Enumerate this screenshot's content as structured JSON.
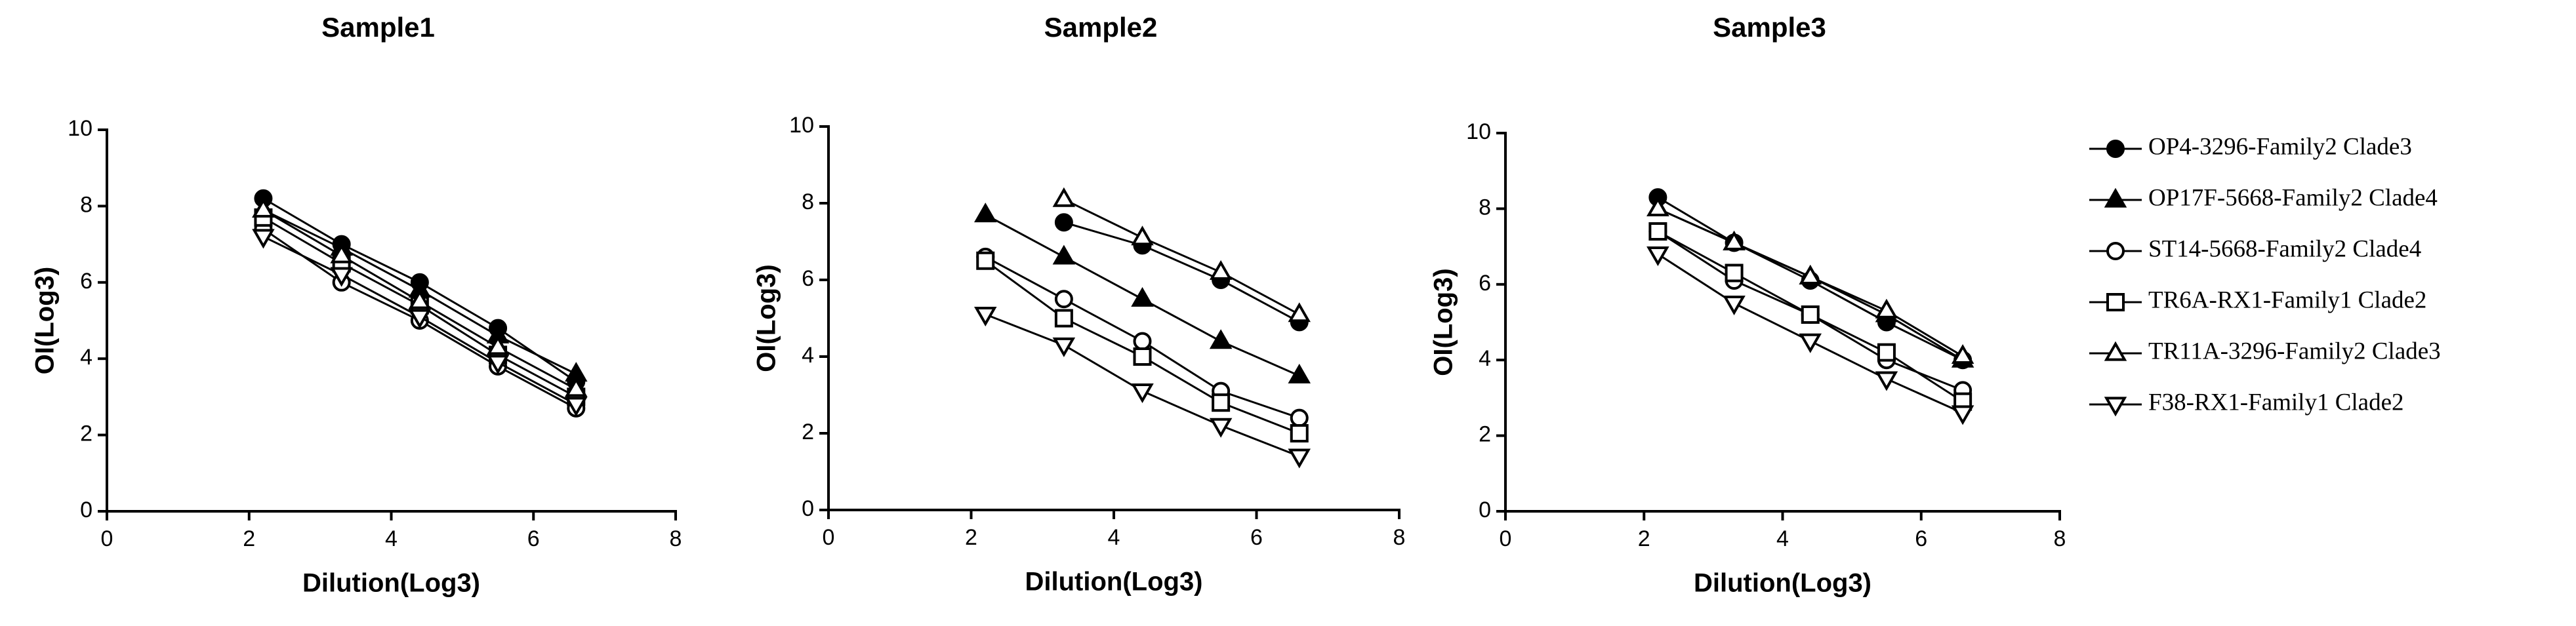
{
  "chart_data": [
    {
      "type": "line",
      "title": "Sample1",
      "x_label": "Dilution(Log3)",
      "y_label": "OI(Log3)",
      "x": [
        2.2,
        3.3,
        4.4,
        5.5,
        6.6
      ],
      "xlim": [
        0,
        8
      ],
      "xticks": [
        0,
        2,
        4,
        6,
        8
      ],
      "ylim": [
        0,
        10
      ],
      "yticks": [
        0,
        2,
        4,
        6,
        8,
        10
      ],
      "series": [
        {
          "name": "OP4-3296-Family2 Clade3",
          "color": "#000000",
          "marker": "circle-filled",
          "values": [
            8.2,
            7.0,
            6.0,
            4.8,
            3.4
          ]
        },
        {
          "name": "OP17F-5668-Family2 Clade4",
          "color": "#000000",
          "marker": "triangle-filled",
          "values": [
            7.9,
            6.9,
            5.8,
            4.6,
            3.6
          ]
        },
        {
          "name": "ST14-5668-Family2 Clade4",
          "color": "#000000",
          "marker": "circle-open",
          "values": [
            7.4,
            6.0,
            5.0,
            3.8,
            2.7
          ]
        },
        {
          "name": "TR6A-RX1-Family1 Clade2",
          "color": "#000000",
          "marker": "square-open",
          "values": [
            7.7,
            6.5,
            5.4,
            4.1,
            3.0
          ]
        },
        {
          "name": "TR11A-3296-Family2 Clade3",
          "color": "#000000",
          "marker": "triangle-open",
          "values": [
            7.9,
            6.7,
            5.5,
            4.3,
            3.2
          ]
        },
        {
          "name": "F38-RX1-Family1 Clade2",
          "color": "#000000",
          "marker": "triangle-down-open",
          "values": [
            7.2,
            6.2,
            5.1,
            3.9,
            2.8
          ]
        }
      ]
    },
    {
      "type": "line",
      "title": "Sample2",
      "x_label": "Dilution(Log3)",
      "y_label": "OI(Log3)",
      "x": [
        2.2,
        3.3,
        4.4,
        5.5,
        6.6
      ],
      "xlim": [
        0,
        8
      ],
      "xticks": [
        0,
        2,
        4,
        6,
        8
      ],
      "ylim": [
        0,
        10
      ],
      "yticks": [
        0,
        2,
        4,
        6,
        8,
        10
      ],
      "series": [
        {
          "name": "OP4-3296-Family2 Clade3",
          "color": "#000000",
          "marker": "circle-filled",
          "values": [
            null,
            7.5,
            6.9,
            6.0,
            4.9
          ]
        },
        {
          "name": "OP17F-5668-Family2 Clade4",
          "color": "#000000",
          "marker": "triangle-filled",
          "values": [
            7.7,
            6.6,
            5.5,
            4.4,
            3.5
          ]
        },
        {
          "name": "ST14-5668-Family2 Clade4",
          "color": "#000000",
          "marker": "circle-open",
          "values": [
            6.6,
            5.5,
            4.4,
            3.1,
            2.4
          ]
        },
        {
          "name": "TR6A-RX1-Family1 Clade2",
          "color": "#000000",
          "marker": "square-open",
          "values": [
            6.5,
            5.0,
            4.0,
            2.8,
            2.0
          ]
        },
        {
          "name": "TR11A-3296-Family2 Clade3",
          "color": "#000000",
          "marker": "triangle-open",
          "values": [
            null,
            8.1,
            7.1,
            6.2,
            5.1
          ]
        },
        {
          "name": "F38-RX1-Family1 Clade2",
          "color": "#000000",
          "marker": "triangle-down-open",
          "values": [
            5.1,
            4.3,
            3.1,
            2.2,
            1.4
          ]
        }
      ]
    },
    {
      "type": "line",
      "title": "Sample3",
      "x_label": "Dilution(Log3)",
      "y_label": "OI(Log3)",
      "x": [
        2.2,
        3.3,
        4.4,
        5.5,
        6.6
      ],
      "xlim": [
        0,
        8
      ],
      "xticks": [
        0,
        2,
        4,
        6,
        8
      ],
      "ylim": [
        0,
        10
      ],
      "yticks": [
        0,
        2,
        4,
        6,
        8,
        10
      ],
      "series": [
        {
          "name": "OP4-3296-Family2 Clade3",
          "color": "#000000",
          "marker": "circle-filled",
          "values": [
            8.3,
            7.1,
            6.1,
            5.0,
            4.0
          ]
        },
        {
          "name": "OP17F-5668-Family2 Clade4",
          "color": "#000000",
          "marker": "triangle-filled",
          "values": [
            8.0,
            7.1,
            6.2,
            5.2,
            4.0
          ]
        },
        {
          "name": "ST14-5668-Family2 Clade4",
          "color": "#000000",
          "marker": "circle-open",
          "values": [
            7.4,
            6.1,
            5.2,
            4.0,
            3.2
          ]
        },
        {
          "name": "TR6A-RX1-Family1 Clade2",
          "color": "#000000",
          "marker": "square-open",
          "values": [
            7.4,
            6.3,
            5.2,
            4.2,
            2.9
          ]
        },
        {
          "name": "TR11A-3296-Family2 Clade3",
          "color": "#000000",
          "marker": "triangle-open",
          "values": [
            8.0,
            7.1,
            6.2,
            5.3,
            4.1
          ]
        },
        {
          "name": "F38-RX1-Family1 Clade2",
          "color": "#000000",
          "marker": "triangle-down-open",
          "values": [
            6.8,
            5.5,
            4.5,
            3.5,
            2.6
          ]
        }
      ]
    }
  ]
}
